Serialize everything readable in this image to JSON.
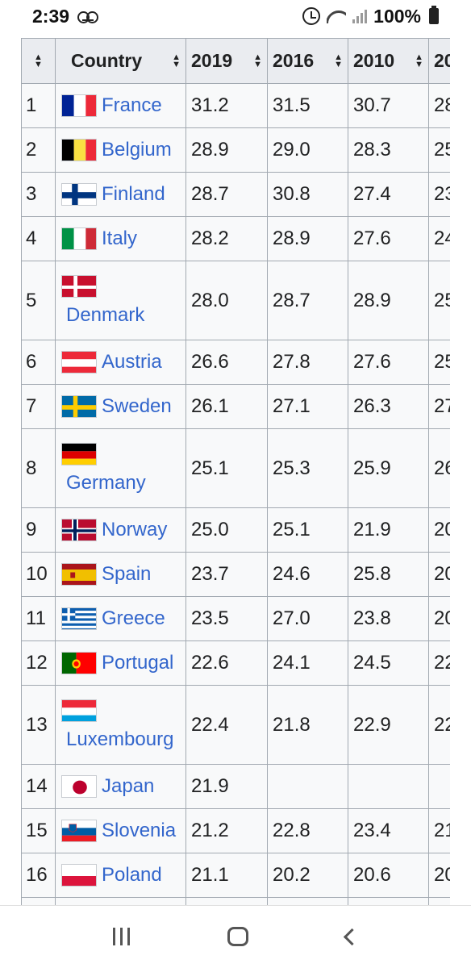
{
  "status_bar": {
    "time": "2:39",
    "battery": "100%"
  },
  "table": {
    "headers": {
      "rank": "",
      "country": "Country",
      "y2019": "2019",
      "y2016": "2016",
      "y2010": "2010",
      "next": "20"
    },
    "rows": [
      {
        "rank": "1",
        "country": "France",
        "flag": "france-flag-icon",
        "v2019": "31.2",
        "v2016": "31.5",
        "v2010": "30.7",
        "next": "28"
      },
      {
        "rank": "2",
        "country": "Belgium",
        "flag": "belgium-flag-icon",
        "v2019": "28.9",
        "v2016": "29.0",
        "v2010": "28.3",
        "next": "25"
      },
      {
        "rank": "3",
        "country": "Finland",
        "flag": "finland-flag-icon",
        "v2019": "28.7",
        "v2016": "30.8",
        "v2010": "27.4",
        "next": "23"
      },
      {
        "rank": "4",
        "country": "Italy",
        "flag": "italy-flag-icon",
        "v2019": "28.2",
        "v2016": "28.9",
        "v2010": "27.6",
        "next": "24"
      },
      {
        "rank": "5",
        "country": "Denmark",
        "flag": "denmark-flag-icon",
        "v2019": "28.0",
        "v2016": "28.7",
        "v2010": "28.9",
        "next": "25"
      },
      {
        "rank": "6",
        "country": "Austria",
        "flag": "austria-flag-icon",
        "v2019": "26.6",
        "v2016": "27.8",
        "v2010": "27.6",
        "next": "25"
      },
      {
        "rank": "7",
        "country": "Sweden",
        "flag": "sweden-flag-icon",
        "v2019": "26.1",
        "v2016": "27.1",
        "v2010": "26.3",
        "next": "27"
      },
      {
        "rank": "8",
        "country": "Germany",
        "flag": "germany-flag-icon",
        "v2019": "25.1",
        "v2016": "25.3",
        "v2010": "25.9",
        "next": "26"
      },
      {
        "rank": "9",
        "country": "Norway",
        "flag": "norway-flag-icon",
        "v2019": "25.0",
        "v2016": "25.1",
        "v2010": "21.9",
        "next": "20"
      },
      {
        "rank": "10",
        "country": "Spain",
        "flag": "spain-flag-icon",
        "v2019": "23.7",
        "v2016": "24.6",
        "v2010": "25.8",
        "next": "20"
      },
      {
        "rank": "11",
        "country": "Greece",
        "flag": "greece-flag-icon",
        "v2019": "23.5",
        "v2016": "27.0",
        "v2010": "23.8",
        "next": "20"
      },
      {
        "rank": "12",
        "country": "Portugal",
        "flag": "portugal-flag-icon",
        "v2019": "22.6",
        "v2016": "24.1",
        "v2010": "24.5",
        "next": "22"
      },
      {
        "rank": "13",
        "country": "Luxembourg",
        "flag": "luxembourg-flag-icon",
        "v2019": "22.4",
        "v2016": "21.8",
        "v2010": "22.9",
        "next": "22"
      },
      {
        "rank": "14",
        "country": "Japan",
        "flag": "japan-flag-icon",
        "v2019": "21.9",
        "v2016": "",
        "v2010": "",
        "next": ""
      },
      {
        "rank": "15",
        "country": "Slovenia",
        "flag": "slovenia-flag-icon",
        "v2019": "21.2",
        "v2016": "22.8",
        "v2010": "23.4",
        "next": "21"
      },
      {
        "rank": "16",
        "country": "Poland",
        "flag": "poland-flag-icon",
        "v2019": "21.1",
        "v2016": "20.2",
        "v2010": "20.6",
        "next": "20"
      },
      {
        "rank": "",
        "country": "",
        "flag": "",
        "v2019": "",
        "v2016": "",
        "v2010": "",
        "next": ""
      }
    ]
  },
  "colors": {
    "link": "#3366cc",
    "header_bg": "#eaecf0",
    "cell_bg": "#f8f9fa",
    "border": "#a2a9b1"
  }
}
